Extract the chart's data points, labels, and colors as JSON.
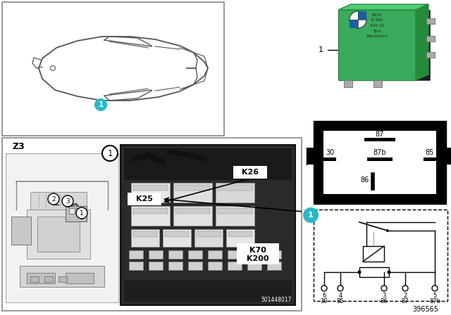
{
  "bg_color": "#ffffff",
  "diagram_number": "396565",
  "relay_green": "#3aaa5c",
  "relay_metal": "#888888",
  "cyan_color": "#29b8c8",
  "photo_bg": "#3a3a3a",
  "photo_light": "#888888",
  "photo_mid": "#555555",
  "pin87_label": "87",
  "pin87b_label": "87b",
  "pin85_label": "85",
  "pin86_label": "86",
  "pin30_label": "30",
  "z3_label": "Z3",
  "part_label_1": "K25",
  "part_label_2": "K26",
  "part_label_3": "K70\nK200",
  "photo_number": "501448017",
  "schematic_pins_num": [
    "6",
    "4",
    "3",
    "2",
    "5"
  ],
  "schematic_pins_name": [
    "30",
    "85",
    "86",
    "87",
    "87b"
  ]
}
